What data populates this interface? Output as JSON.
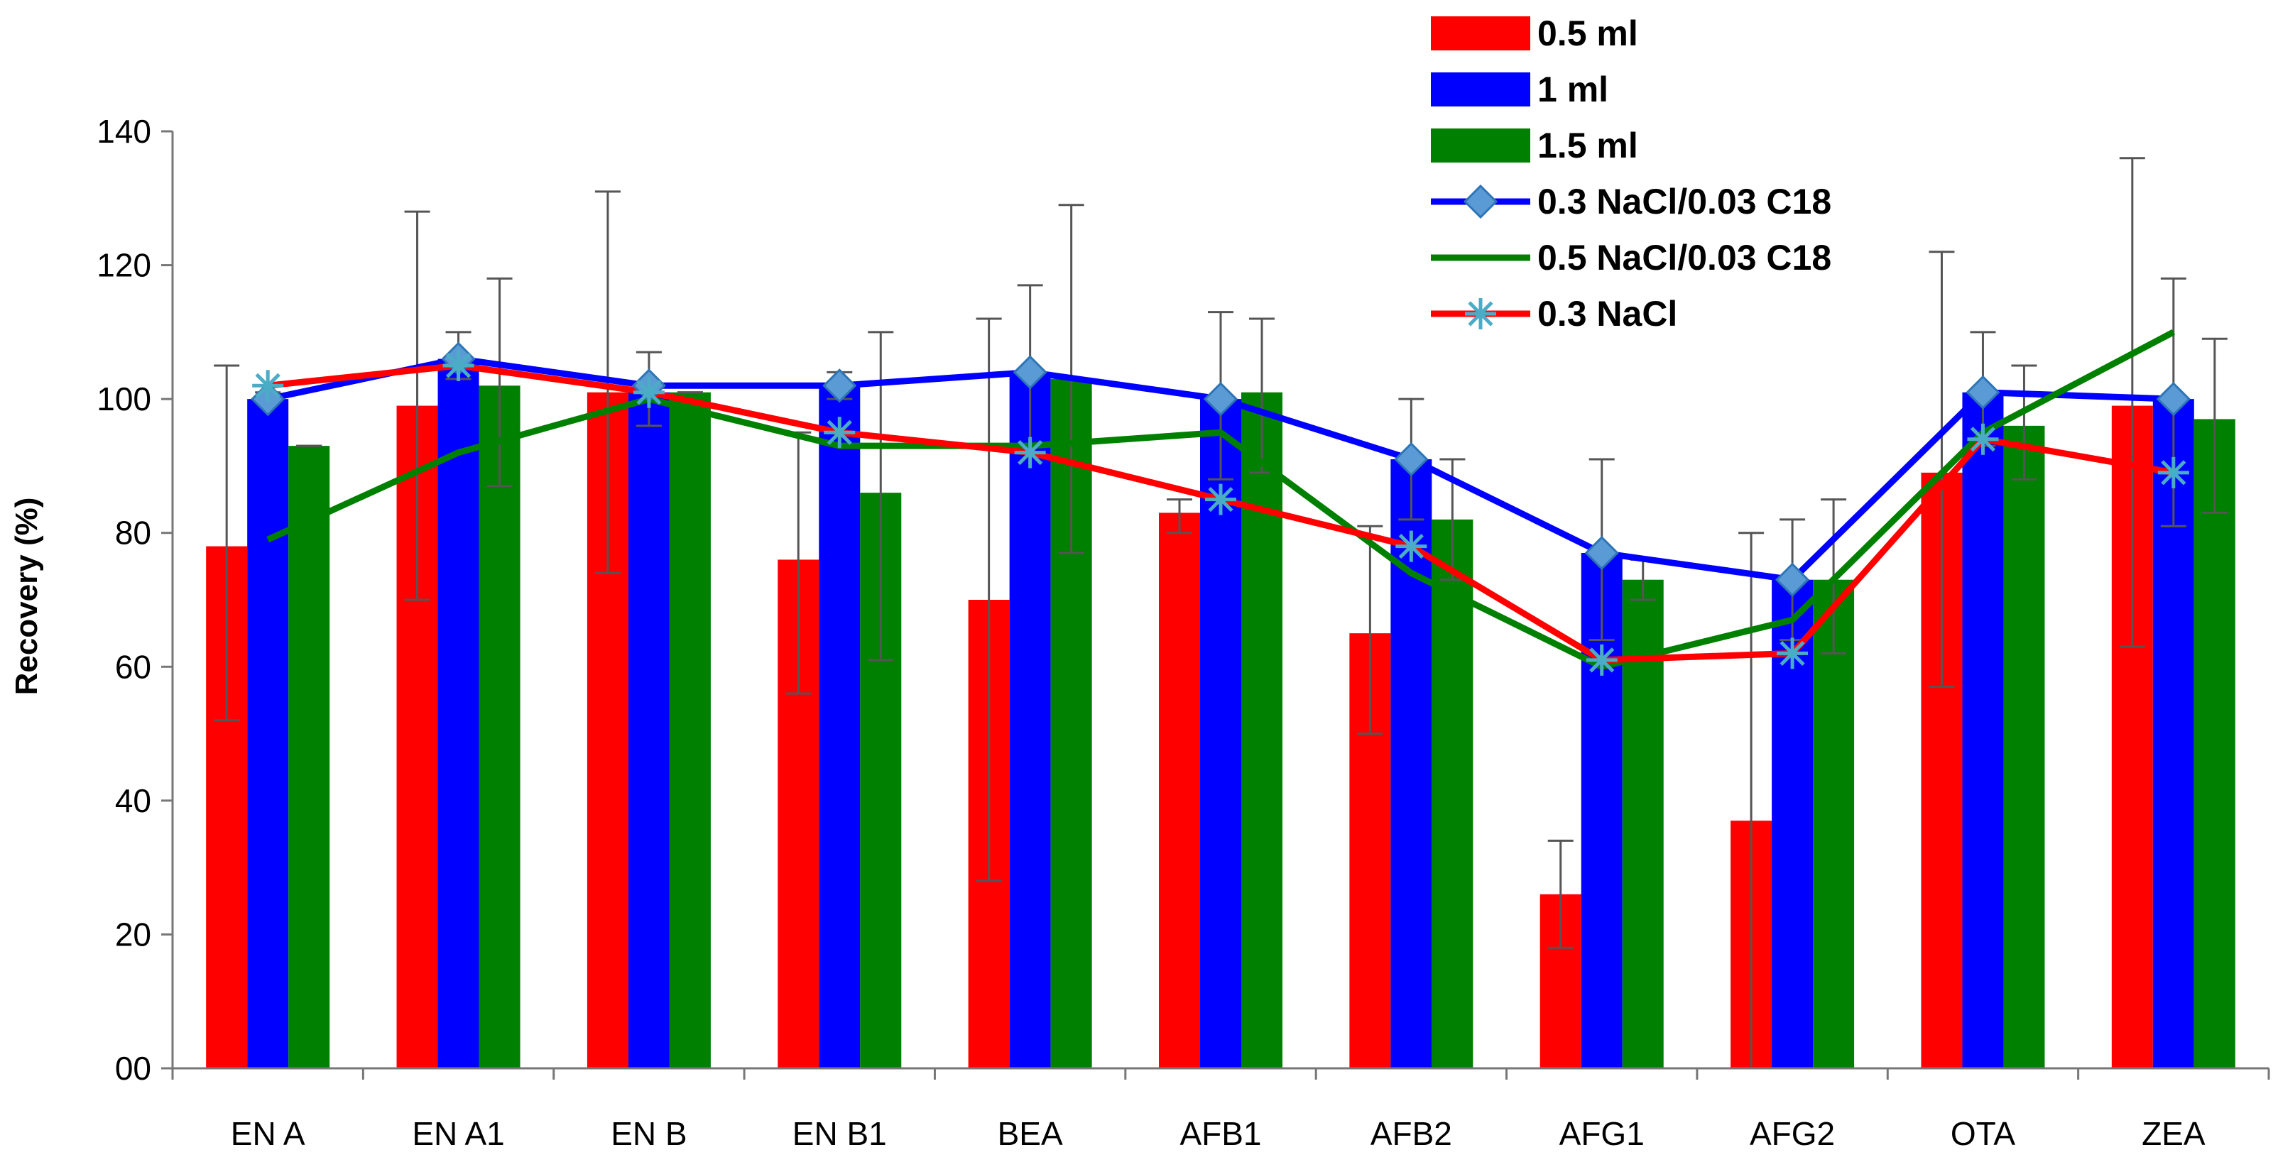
{
  "chart_data": {
    "type": "bar",
    "categories": [
      "EN A",
      "EN A1",
      "EN B",
      "EN B1",
      "BEA",
      "AFB1",
      "AFB2",
      "AFG1",
      "AFG2",
      "OTA",
      "ZEA"
    ],
    "ylabel": "Recovery (%)",
    "xlabel": "",
    "ylim": [
      0,
      140
    ],
    "yticks": [
      0,
      20,
      40,
      60,
      80,
      100,
      120,
      140
    ],
    "ytick_labels": [
      "00",
      "20",
      "40",
      "60",
      "80",
      "100",
      "120",
      "140"
    ],
    "grid": false,
    "legend_position": "top-right",
    "bar_series": [
      {
        "name": "0.5 ml",
        "color": "#ff0000",
        "values": [
          78,
          99,
          101,
          76,
          70,
          83,
          65,
          26,
          37,
          89,
          99
        ],
        "error_low": [
          52,
          70,
          74,
          56,
          28,
          80,
          50,
          18,
          0,
          57,
          63
        ],
        "error_high": [
          105,
          128,
          131,
          95,
          112,
          85,
          81,
          34,
          80,
          122,
          136
        ]
      },
      {
        "name": "1 ml",
        "color": "#0000ff",
        "values": [
          100,
          106,
          101,
          102,
          104,
          100,
          91,
          77,
          73,
          101,
          100
        ],
        "error_low": [
          100,
          103,
          96,
          100,
          92,
          88,
          82,
          64,
          64,
          93,
          81
        ],
        "error_high": [
          101,
          110,
          107,
          104,
          117,
          113,
          100,
          91,
          82,
          110,
          118
        ]
      },
      {
        "name": "1.5 ml",
        "color": "#008000",
        "values": [
          93,
          102,
          101,
          86,
          103,
          101,
          82,
          73,
          73,
          96,
          97
        ],
        "error_low": [
          93,
          87,
          101,
          61,
          77,
          89,
          73,
          70,
          62,
          88,
          83
        ],
        "error_high": [
          93,
          118,
          101,
          110,
          129,
          112,
          91,
          76,
          85,
          105,
          109
        ]
      }
    ],
    "line_series": [
      {
        "name": "0.3 NaCl/0.03 C18",
        "color": "#0000ff",
        "marker": "diamond",
        "values": [
          100,
          106,
          102,
          102,
          104,
          100,
          91,
          77,
          73,
          101,
          100
        ]
      },
      {
        "name": "0.5 NaCl/0.03 C18",
        "color": "#008000",
        "marker": "none",
        "values": [
          79,
          92,
          100,
          93,
          93,
          95,
          74,
          60,
          67,
          95,
          110
        ]
      },
      {
        "name": "0.3 NaCl",
        "color": "#ff0000",
        "marker": "star",
        "values": [
          102,
          105,
          101,
          95,
          92,
          85,
          78,
          61,
          62,
          94,
          89
        ]
      }
    ]
  }
}
